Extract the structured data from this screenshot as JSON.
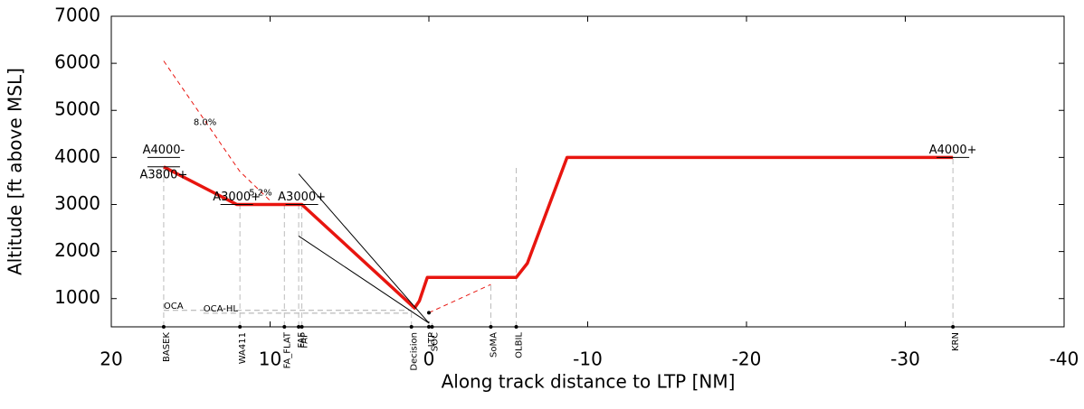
{
  "chart_data": {
    "type": "line",
    "x_label": "Along track distance to LTP [NM]",
    "y_label": "Altitude [ft above MSL]",
    "xlim": [
      20,
      -40
    ],
    "xticks": [
      20,
      10,
      0,
      -10,
      -20,
      -30,
      -40
    ],
    "ylim": [
      400,
      7000
    ],
    "yticks": [
      1000,
      2000,
      3000,
      4000,
      5000,
      6000,
      7000
    ],
    "series": [
      {
        "color": "#e8150f",
        "style": "solid",
        "x": [
          16.7,
          12.1,
          8.0,
          0.9,
          0.6,
          0.1,
          -5.5,
          -6.2,
          -8.7,
          -33.0
        ],
        "values": [
          3800,
          3000,
          3000,
          800,
          950,
          1450,
          1450,
          1750,
          4000,
          4000
        ]
      },
      {
        "color": "#e8150f",
        "style": "dashed",
        "x": [
          16.7,
          11.9,
          9.9
        ],
        "values": [
          6050,
          3700,
          3050
        ]
      },
      {
        "color": "#e8150f",
        "style": "dashed",
        "x": [
          0,
          -3.9
        ],
        "values": [
          700,
          1300
        ]
      },
      {
        "color": "#000000",
        "style": "thin",
        "x": [
          8.2,
          0
        ],
        "values": [
          3650,
          480
        ]
      },
      {
        "color": "#000000",
        "style": "thin",
        "x": [
          8.2,
          0
        ],
        "values": [
          2330,
          480
        ]
      }
    ],
    "waypoints": [
      {
        "label": "BASEK",
        "x": 16.7,
        "top": 3800
      },
      {
        "label": "WA411",
        "x": 11.9,
        "top": 3000
      },
      {
        "label": "FA_FLAT",
        "x": 9.1,
        "top": 3000
      },
      {
        "label": "FAF",
        "x": 8.2,
        "top": 3000
      },
      {
        "label": "FAP",
        "x": 8.0,
        "top": 3000
      },
      {
        "label": "Decision",
        "x": 1.1,
        "top": 800
      },
      {
        "label": "LTP",
        "x": 0,
        "top": 480
      },
      {
        "label": "SOC",
        "x": -0.2,
        "top": 480
      },
      {
        "label": "SoMA",
        "x": -3.9,
        "top": 1300
      },
      {
        "label": "OLBIL",
        "x": -5.5,
        "top": 3850
      },
      {
        "label": "KRN",
        "x": -33.0,
        "top": 4000
      }
    ],
    "constraints": [
      {
        "label": "A4000-",
        "x": 16.7,
        "alt": 4000
      },
      {
        "label": "A3800+",
        "x": 16.7,
        "alt": 3800
      },
      {
        "label": "A3000+",
        "x": 12.1,
        "alt": 3000
      },
      {
        "label": "A3000+",
        "x": 8.0,
        "alt": 3000
      },
      {
        "label": "A4000+",
        "x": -33.0,
        "alt": 4000
      }
    ],
    "oca": [
      {
        "label": "OCA",
        "x": 16.7,
        "alt": 750
      },
      {
        "label": "OCA-HL",
        "x": 14.2,
        "alt": 690
      }
    ],
    "annotations": [
      {
        "text": "8.0%",
        "x": 14.1,
        "y": 4750
      },
      {
        "text": "5.2%",
        "x": 10.6,
        "y": 3250
      }
    ]
  }
}
